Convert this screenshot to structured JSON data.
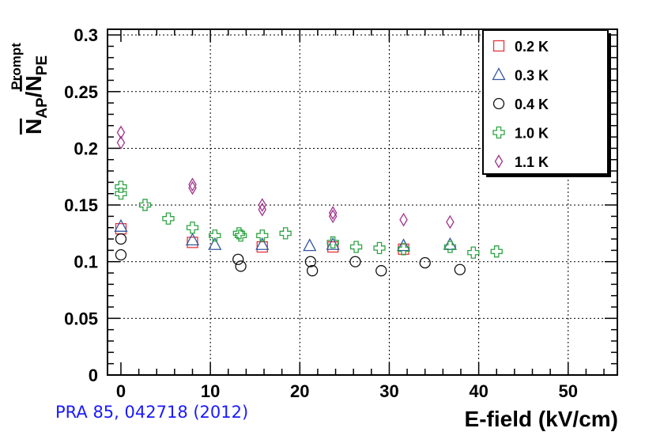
{
  "citation": "PRA 85, 042718 (2012)",
  "chart_data": {
    "type": "scatter",
    "xlabel": "E-field (kV/cm)",
    "ylabel": {
      "main": "N",
      "sub1": "AP",
      "slash": "/",
      "main2": "N",
      "sub2": "PE",
      "sup": "Prompt"
    },
    "xlim": [
      -1.5,
      55.5
    ],
    "ylim": [
      0,
      0.305
    ],
    "x_ticks": [
      0,
      10,
      20,
      30,
      40,
      50
    ],
    "y_ticks": [
      0,
      0.05,
      0.1,
      0.15,
      0.2,
      0.25,
      0.3
    ],
    "x_tick_labels": [
      "0",
      "10",
      "20",
      "30",
      "40",
      "50"
    ],
    "y_tick_labels": [
      "0",
      "0.05",
      "0.1",
      "0.15",
      "0.2",
      "0.25",
      "0.3"
    ],
    "grid": true,
    "legend_position": "top-right",
    "series": [
      {
        "name": "0.2 K",
        "marker": "square",
        "color": "#e8323c",
        "points": [
          [
            0,
            0.129
          ],
          [
            8,
            0.117
          ],
          [
            15.8,
            0.113
          ],
          [
            23.7,
            0.113
          ],
          [
            31.6,
            0.111
          ]
        ]
      },
      {
        "name": "0.3 K",
        "marker": "triangle",
        "color": "#3557a0",
        "points": [
          [
            0,
            0.131
          ],
          [
            8,
            0.119
          ],
          [
            10.5,
            0.115
          ],
          [
            15.8,
            0.115
          ],
          [
            21.1,
            0.114
          ],
          [
            23.7,
            0.115
          ],
          [
            31.6,
            0.114
          ],
          [
            36.8,
            0.115
          ]
        ]
      },
      {
        "name": "0.4 K",
        "marker": "circle",
        "color": "#111111",
        "points": [
          [
            0,
            0.12
          ],
          [
            0,
            0.106
          ],
          [
            13.1,
            0.102
          ],
          [
            13.4,
            0.096
          ],
          [
            21.2,
            0.1
          ],
          [
            21.4,
            0.092
          ],
          [
            26.2,
            0.1
          ],
          [
            29.1,
            0.092
          ],
          [
            34,
            0.099
          ],
          [
            37.9,
            0.093
          ]
        ]
      },
      {
        "name": "1.0 K",
        "marker": "cross",
        "color": "#2fa444",
        "points": [
          [
            0,
            0.166
          ],
          [
            0,
            0.16
          ],
          [
            2.7,
            0.15
          ],
          [
            5.3,
            0.138
          ],
          [
            8,
            0.13
          ],
          [
            10.5,
            0.123
          ],
          [
            13.2,
            0.125
          ],
          [
            13.4,
            0.123
          ],
          [
            15.8,
            0.123
          ],
          [
            18.4,
            0.125
          ],
          [
            23.7,
            0.117
          ],
          [
            26.3,
            0.113
          ],
          [
            28.9,
            0.112
          ],
          [
            31.6,
            0.111
          ],
          [
            36.8,
            0.113
          ],
          [
            39.4,
            0.108
          ],
          [
            42,
            0.109
          ]
        ]
      },
      {
        "name": "1.1 K",
        "marker": "diamond",
        "color": "#a0338c",
        "points": [
          [
            0,
            0.214
          ],
          [
            0,
            0.205
          ],
          [
            8,
            0.168
          ],
          [
            8,
            0.165
          ],
          [
            15.8,
            0.15
          ],
          [
            15.8,
            0.146
          ],
          [
            23.7,
            0.143
          ],
          [
            23.7,
            0.14
          ],
          [
            31.6,
            0.137
          ],
          [
            36.8,
            0.135
          ]
        ]
      }
    ]
  }
}
